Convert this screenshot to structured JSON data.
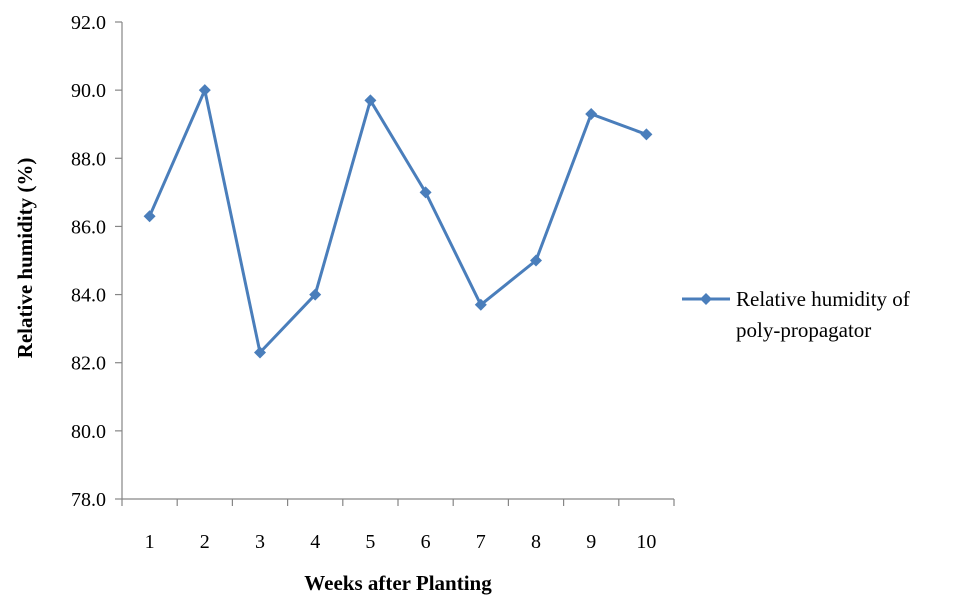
{
  "chart_data": {
    "type": "line",
    "title": "",
    "xlabel": "Weeks after Planting",
    "ylabel": "Relative humidity (%)",
    "categories": [
      "1",
      "2",
      "3",
      "4",
      "5",
      "6",
      "7",
      "8",
      "9",
      "10"
    ],
    "series": [
      {
        "name": "Relative humidity of poly-propagator",
        "name_lines": [
          "Relative humidity of",
          "poly-propagator"
        ],
        "values": [
          86.3,
          90.0,
          82.3,
          84.0,
          89.7,
          87.0,
          83.7,
          85.0,
          89.3,
          88.7
        ],
        "color": "#4a7ebb",
        "marker": "diamond"
      }
    ],
    "ylim": [
      78.0,
      92.0
    ],
    "y_ticks": [
      "78.0",
      "80.0",
      "82.0",
      "84.0",
      "86.0",
      "88.0",
      "90.0",
      "92.0"
    ],
    "grid": false,
    "legend_position": "right"
  }
}
